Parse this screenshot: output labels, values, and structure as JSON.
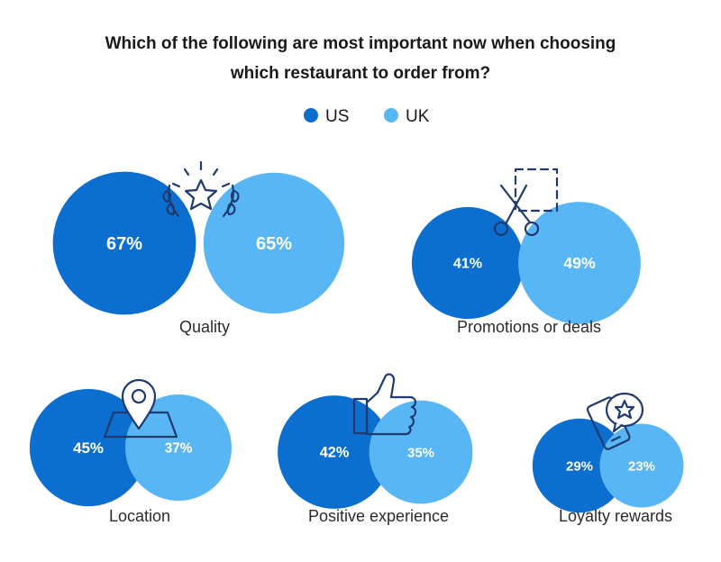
{
  "colors": {
    "us": "#0c6fd0",
    "uk": "#58b6f5",
    "icon": "#1e3a6e"
  },
  "chart_data": {
    "type": "bubble",
    "title": [
      "Which of the following are most important now when choosing",
      "which restaurant to order from?"
    ],
    "legend_position": "top-center",
    "series": [
      {
        "name": "US",
        "color": "#0c6fd0"
      },
      {
        "name": "UK",
        "color": "#58b6f5"
      }
    ],
    "categories": [
      {
        "label": "Quality",
        "us": 67,
        "uk": 65,
        "us_text": "67%",
        "uk_text": "65%",
        "icon": "laurel-star-icon"
      },
      {
        "label": "Promotions or deals",
        "us": 41,
        "uk": 49,
        "us_text": "41%",
        "uk_text": "49%",
        "icon": "scissors-coupon-icon"
      },
      {
        "label": "Location",
        "us": 45,
        "uk": 37,
        "us_text": "45%",
        "uk_text": "37%",
        "icon": "map-pin-icon"
      },
      {
        "label": "Positive experience",
        "us": 42,
        "uk": 35,
        "us_text": "42%",
        "uk_text": "35%",
        "icon": "thumbs-up-icon"
      },
      {
        "label": "Loyalty rewards",
        "us": 29,
        "uk": 23,
        "us_text": "29%",
        "uk_text": "23%",
        "icon": "phone-star-icon"
      }
    ]
  }
}
